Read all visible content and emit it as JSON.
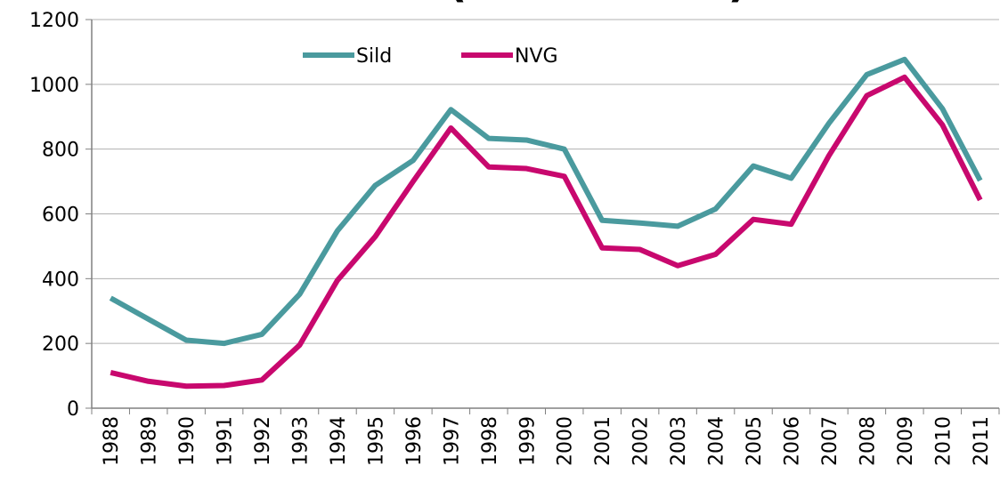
{
  "chart_data": {
    "type": "line",
    "title": "NVG sild (tusen tonn)",
    "categories": [
      "1988",
      "1989",
      "1990",
      "1991",
      "1992",
      "1993",
      "1994",
      "1995",
      "1996",
      "1997",
      "1998",
      "1999",
      "2000",
      "2001",
      "2002",
      "2003",
      "2004",
      "2005",
      "2006",
      "2007",
      "2008",
      "2009",
      "2010",
      "2011"
    ],
    "series": [
      {
        "name": "Sild",
        "color": "#4a9a9e",
        "values": [
          340,
          275,
          210,
          200,
          228,
          352,
          548,
          688,
          765,
          922,
          833,
          828,
          800,
          580,
          572,
          562,
          615,
          748,
          710,
          880,
          1030,
          1077,
          925,
          703
        ]
      },
      {
        "name": "NVG",
        "color": "#c8086e",
        "values": [
          110,
          83,
          68,
          70,
          87,
          195,
          395,
          530,
          700,
          865,
          745,
          740,
          716,
          495,
          490,
          440,
          475,
          583,
          568,
          780,
          965,
          1022,
          875,
          643
        ]
      }
    ],
    "ylim": [
      0,
      1200
    ],
    "yticks": [
      0,
      200,
      400,
      600,
      800,
      1000,
      1200
    ],
    "grid": true,
    "legend": "top"
  }
}
